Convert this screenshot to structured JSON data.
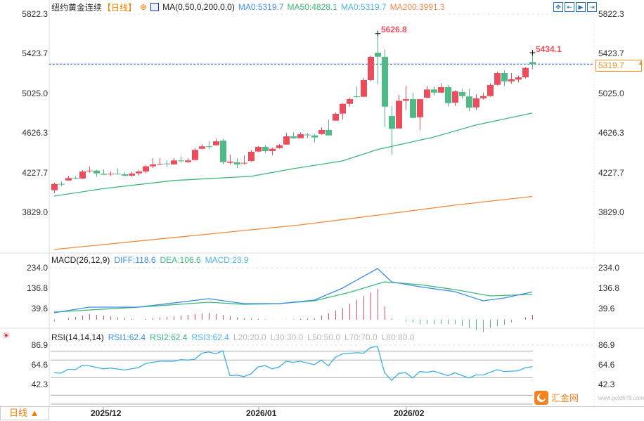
{
  "header": {
    "instrument": "纽约黄金连续",
    "period": "【日线】",
    "indicator_name": "MA(0,50,0,200,0,0)",
    "ma_values": [
      {
        "label": "MA0:5319.7",
        "color": "#4a8ff0"
      },
      {
        "label": "MA50:4828.1",
        "color": "#3cb878"
      },
      {
        "label": "MA0:5319.7",
        "color": "#4db6ea"
      },
      {
        "label": "MA200:3991.3",
        "color": "#f0894a"
      }
    ]
  },
  "toolbar": {
    "icons": [
      "crosshair-move-icon",
      "zoom-in-icon",
      "play-icon",
      "goto-end-icon"
    ]
  },
  "price_axis": {
    "ticks": [
      "5822.3",
      "5423.7",
      "5025.0",
      "4626.3",
      "4227.7",
      "3829.0"
    ]
  },
  "current_price": "5319.7",
  "annotations": {
    "high_label": "5626.8",
    "last_high_label": "5434.1"
  },
  "macd": {
    "title": "MACD(26,12,9)",
    "diff_label": "DIFF:118.6",
    "dea_label": "DEA:106.6",
    "macd_label": "MACD:23.9",
    "ticks": [
      "234.0",
      "136.8",
      "39.6"
    ]
  },
  "rsi": {
    "title": "RSI(14,14,14)",
    "rsi1_label": "RSI1:62.4",
    "rsi2_label": "RSI2:62.4",
    "rsi3_label": "RSI3:62.4",
    "levels": [
      "L20:20.0",
      "L30:30.0",
      "L50:50.0",
      "L70:70.0",
      "L80:80.0"
    ],
    "ticks": [
      "86.9",
      "64.6",
      "42.3"
    ]
  },
  "xaxis": {
    "labels": [
      "2025/12",
      "2026/01",
      "2026/02"
    ]
  },
  "period_button": "日线 ▲",
  "watermark": {
    "text": "汇金网",
    "url_text": "www.gold678.com"
  },
  "colors": {
    "up": "#eb4d5c",
    "down": "#4fba86",
    "ma50": "#3cb878",
    "ma200": "#f08a3c",
    "diff": "#3a8ee6",
    "dea": "#3cb878",
    "rsi": "#3bb0e8",
    "current": "#f39020"
  },
  "chart_data": [
    {
      "type": "candlestick",
      "ylim": [
        3437.7,
        5822.3
      ],
      "grid": false,
      "dates": [
        "2025-11-20",
        "2025-11-21",
        "2025-11-24",
        "2025-11-25",
        "2025-11-26",
        "2025-11-27",
        "2025-11-28",
        "2025-12-01",
        "2025-12-02",
        "2025-12-03",
        "2025-12-04",
        "2025-12-05",
        "2025-12-08",
        "2025-12-09",
        "2025-12-10",
        "2025-12-11",
        "2025-12-12",
        "2025-12-15",
        "2025-12-16",
        "2025-12-17",
        "2025-12-18",
        "2025-12-19",
        "2025-12-22",
        "2025-12-23",
        "2025-12-24",
        "2025-12-26",
        "2025-12-29",
        "2025-12-30",
        "2025-12-31",
        "2026-01-02",
        "2026-01-05",
        "2026-01-06",
        "2026-01-07",
        "2026-01-08",
        "2026-01-09",
        "2026-01-12",
        "2026-01-13",
        "2026-01-14",
        "2026-01-15",
        "2026-01-16",
        "2026-01-19",
        "2026-01-20",
        "2026-01-21",
        "2026-01-22",
        "2026-01-23",
        "2026-01-26",
        "2026-01-27",
        "2026-01-28",
        "2026-01-29",
        "2026-01-30",
        "2026-02-02",
        "2026-02-03",
        "2026-02-04",
        "2026-02-05",
        "2026-02-06",
        "2026-02-09",
        "2026-02-10",
        "2026-02-11",
        "2026-02-12",
        "2026-02-13",
        "2026-02-16",
        "2026-02-17",
        "2026-02-18",
        "2026-02-19",
        "2026-02-20",
        "2026-02-23",
        "2026-02-24",
        "2026-02-25",
        "2026-02-26"
      ],
      "ohlc": [
        [
          4054,
          4129,
          4023,
          4117
        ],
        [
          4118,
          4143,
          4094,
          4115
        ],
        [
          4152,
          4200,
          4148,
          4176
        ],
        [
          4177,
          4195,
          4164,
          4174
        ],
        [
          4171,
          4258,
          4164,
          4242
        ],
        [
          4248,
          4294,
          4230,
          4251
        ],
        [
          4251,
          4258,
          4188,
          4223
        ],
        [
          4219,
          4263,
          4207,
          4209
        ],
        [
          4216,
          4242,
          4195,
          4219
        ],
        [
          4220,
          4275,
          4212,
          4217
        ],
        [
          4214,
          4233,
          4193,
          4200
        ],
        [
          4200,
          4240,
          4188,
          4221
        ],
        [
          4223,
          4258,
          4200,
          4242
        ],
        [
          4242,
          4306,
          4223,
          4294
        ],
        [
          4294,
          4376,
          4277,
          4313
        ],
        [
          4312,
          4376,
          4306,
          4317
        ],
        [
          4322,
          4353,
          4289,
          4319
        ],
        [
          4313,
          4376,
          4310,
          4353
        ],
        [
          4353,
          4395,
          4329,
          4350
        ],
        [
          4336,
          4376,
          4329,
          4353
        ],
        [
          4357,
          4475,
          4353,
          4459
        ],
        [
          4470,
          4517,
          4463,
          4494
        ],
        [
          4495,
          4548,
          4463,
          4492
        ],
        [
          4505,
          4571,
          4501,
          4545
        ],
        [
          4552,
          4571,
          4313,
          4336
        ],
        [
          4329,
          4411,
          4313,
          4341
        ],
        [
          4334,
          4376,
          4277,
          4313
        ],
        [
          4326,
          4404,
          4313,
          4329
        ],
        [
          4348,
          4459,
          4341,
          4440
        ],
        [
          4442,
          4498,
          4435,
          4489
        ],
        [
          4489,
          4505,
          4428,
          4447
        ],
        [
          4447,
          4482,
          4406,
          4470
        ],
        [
          4477,
          4517,
          4470,
          4505
        ],
        [
          4512,
          4630,
          4512,
          4595
        ],
        [
          4595,
          4635,
          4569,
          4576
        ],
        [
          4576,
          4635,
          4576,
          4616
        ],
        [
          4612,
          4630,
          4576,
          4609
        ],
        [
          4604,
          4618,
          4533,
          4583
        ],
        [
          4618,
          4686,
          4611,
          4658
        ],
        [
          4658,
          4764,
          4604,
          4604
        ],
        [
          4752,
          4835,
          4752,
          4821
        ],
        [
          4823,
          4928,
          4764,
          4921
        ],
        [
          4921,
          4983,
          4893,
          4968
        ],
        [
          4996,
          5094,
          4981,
          4993
        ],
        [
          4992,
          5180,
          4992,
          5159
        ],
        [
          5159,
          5404,
          5147,
          5392
        ],
        [
          5434,
          5626.8,
          5117,
          5394
        ],
        [
          5392,
          5470,
          4689,
          4893
        ],
        [
          4799,
          4898,
          4411,
          4670
        ],
        [
          4674,
          5011,
          4674,
          4952
        ],
        [
          4952,
          5101,
          4858,
          4968
        ],
        [
          4968,
          5034,
          4776,
          4780
        ],
        [
          4787,
          4968,
          4658,
          4968
        ],
        [
          4983,
          5101,
          4976,
          5065
        ],
        [
          5065,
          5094,
          5004,
          5034
        ],
        [
          5034,
          5129,
          5027,
          5089
        ],
        [
          5089,
          5110,
          4893,
          4928
        ],
        [
          4933,
          5058,
          4900,
          5046
        ],
        [
          5039,
          5070,
          4971,
          4999
        ],
        [
          4995,
          5070,
          4847,
          4882
        ],
        [
          4886,
          5018,
          4858,
          4976
        ],
        [
          4976,
          5034,
          4964,
          4999
        ],
        [
          4999,
          5124,
          4992,
          5110
        ],
        [
          5112,
          5244,
          5105,
          5230
        ],
        [
          5230,
          5258,
          5098,
          5147
        ],
        [
          5147,
          5230,
          5124,
          5168
        ],
        [
          5164,
          5206,
          5136,
          5187
        ],
        [
          5187,
          5288,
          5175,
          5281
        ],
        [
          5340,
          5434.1,
          5265,
          5319.7
        ]
      ],
      "series": [
        {
          "name": "MA50",
          "points": [
            [
              "2025-11-20",
              3995
            ],
            [
              "2025-12-01",
              4070
            ],
            [
              "2025-12-15",
              4152
            ],
            [
              "2025-12-31",
              4193
            ],
            [
              "2026-01-09",
              4270
            ],
            [
              "2026-01-20",
              4348
            ],
            [
              "2026-01-27",
              4463
            ],
            [
              "2026-02-06",
              4588
            ],
            [
              "2026-02-16",
              4708
            ],
            [
              "2026-02-26",
              4828.1
            ]
          ]
        },
        {
          "name": "MA200",
          "points": [
            [
              "2025-11-20",
              3459
            ],
            [
              "2025-12-22",
              3614
            ],
            [
              "2026-01-12",
              3706
            ],
            [
              "2026-01-28",
              3812
            ],
            [
              "2026-02-11",
              3904
            ],
            [
              "2026-02-26",
              3991.3
            ]
          ]
        }
      ]
    },
    {
      "type": "line",
      "ylim": [
        -50.9,
        297.7
      ],
      "series": [
        {
          "name": "DIFF",
          "points": [
            [
              "2025-11-20",
              19.5
            ],
            [
              "2025-11-27",
              46.3
            ],
            [
              "2025-12-08",
              46.3
            ],
            [
              "2025-12-22",
              86.5
            ],
            [
              "2025-12-30",
              63
            ],
            [
              "2026-01-07",
              63
            ],
            [
              "2026-01-14",
              79.8
            ],
            [
              "2026-01-20",
              136.8
            ],
            [
              "2026-01-27",
              230.6
            ],
            [
              "2026-01-29",
              167
            ],
            [
              "2026-02-04",
              143.5
            ],
            [
              "2026-02-11",
              120
            ],
            [
              "2026-02-17",
              76.5
            ],
            [
              "2026-02-20",
              89.9
            ],
            [
              "2026-02-26",
              118.6
            ]
          ]
        },
        {
          "name": "DEA",
          "points": [
            [
              "2025-11-20",
              22.8
            ],
            [
              "2025-12-08",
              46.3
            ],
            [
              "2025-12-22",
              69.8
            ],
            [
              "2025-12-30",
              59.7
            ],
            [
              "2026-01-07",
              63
            ],
            [
              "2026-01-14",
              76.5
            ],
            [
              "2026-01-21",
              116.7
            ],
            [
              "2026-01-28",
              167
            ],
            [
              "2026-02-04",
              153.6
            ],
            [
              "2026-02-11",
              130.1
            ],
            [
              "2026-02-18",
              99.9
            ],
            [
              "2026-02-26",
              106.6
            ]
          ]
        }
      ]
    },
    {
      "type": "line",
      "ylim": [
        17.6,
        103.6
      ],
      "levels": [
        20,
        30,
        50,
        70,
        80
      ],
      "series": [
        {
          "name": "RSI1",
          "points": [
            [
              "2025-11-20",
              55.6
            ],
            [
              "2025-11-21",
              55.1
            ],
            [
              "2025-11-24",
              59.5
            ],
            [
              "2025-11-25",
              59
            ],
            [
              "2025-11-26",
              63.9
            ],
            [
              "2025-11-27",
              63.4
            ],
            [
              "2025-12-01",
              60
            ],
            [
              "2025-12-02",
              60.8
            ],
            [
              "2025-12-04",
              58.7
            ],
            [
              "2025-12-08",
              61.3
            ],
            [
              "2025-12-09",
              66
            ],
            [
              "2025-12-11",
              68.6
            ],
            [
              "2025-12-15",
              68.6
            ],
            [
              "2025-12-16",
              70.4
            ],
            [
              "2025-12-17",
              69.9
            ],
            [
              "2025-12-18",
              70.7
            ],
            [
              "2025-12-19",
              77.7
            ],
            [
              "2025-12-22",
              79
            ],
            [
              "2025-12-23",
              77.1
            ],
            [
              "2025-12-24",
              80.3
            ],
            [
              "2025-12-26",
              52.2
            ],
            [
              "2025-12-29",
              52.8
            ],
            [
              "2025-12-30",
              51.2
            ],
            [
              "2025-12-31",
              54.3
            ],
            [
              "2026-01-02",
              62.1
            ],
            [
              "2026-01-05",
              63.7
            ],
            [
              "2026-01-06",
              60
            ],
            [
              "2026-01-07",
              62.1
            ],
            [
              "2026-01-08",
              68.6
            ],
            [
              "2026-01-09",
              67.3
            ],
            [
              "2026-01-12",
              68.6
            ],
            [
              "2026-01-14",
              64.7
            ],
            [
              "2026-01-15",
              69.9
            ],
            [
              "2026-01-16",
              63.4
            ],
            [
              "2026-01-19",
              73
            ],
            [
              "2026-01-20",
              76.9
            ],
            [
              "2026-01-22",
              78.2
            ],
            [
              "2026-01-23",
              77.7
            ],
            [
              "2026-01-26",
              84.1
            ],
            [
              "2026-01-27",
              85.4
            ],
            [
              "2026-01-28",
              55.6
            ],
            [
              "2026-01-29",
              47
            ],
            [
              "2026-01-30",
              54.8
            ],
            [
              "2026-02-02",
              55.6
            ],
            [
              "2026-02-03",
              49.6
            ],
            [
              "2026-02-04",
              56.9
            ],
            [
              "2026-02-05",
              56.1
            ],
            [
              "2026-02-06",
              57.4
            ],
            [
              "2026-02-10",
              52.2
            ],
            [
              "2026-02-11",
              55.4
            ],
            [
              "2026-02-13",
              49.6
            ],
            [
              "2026-02-16",
              53
            ],
            [
              "2026-02-17",
              53
            ],
            [
              "2026-02-19",
              59
            ],
            [
              "2026-02-20",
              56.9
            ],
            [
              "2026-02-24",
              57.7
            ],
            [
              "2026-02-25",
              61.3
            ],
            [
              "2026-02-26",
              62.4
            ]
          ]
        }
      ]
    }
  ]
}
